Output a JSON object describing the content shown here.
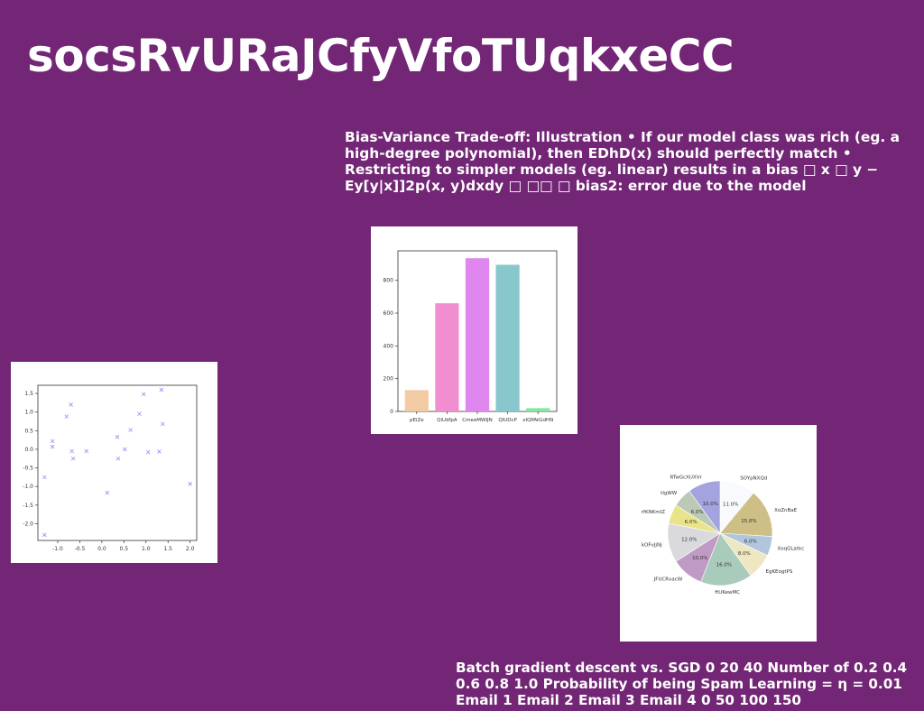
{
  "slide": {
    "title": "socsRvURaJCfyVfoTUqkxeCC",
    "text1": "Bias-Variance Trade-off: Illustration • If our model class was rich (eg. a high-degree polynomial), then EDhD(x) should perfectly match • Restricting to simpler models (eg. linear) results in a bias □ x □ y − Ey[y|x]]2p(x, y)dxdy □ □□ □ bias2: error due to the model",
    "text2": "Batch gradient descent vs. SGD 0 20 40 Number of 0.2 0.4 0.6 0.8 1.0 Probability of being Spam Learning = η = 0.01 Email 1 Email 2 Email 3 Email 4 0 50 100 150"
  },
  "chart_data": [
    {
      "type": "scatter",
      "marker": "x",
      "color": "#8f8ff5",
      "xlim": [
        -1.45,
        2.15
      ],
      "ylim": [
        -2.45,
        1.72
      ],
      "xticks": [
        "-1.0",
        "-0.5",
        "0.0",
        "0.5",
        "1.0",
        "1.5",
        "2.0"
      ],
      "yticks": [
        "1.5",
        "1.0",
        "0.5",
        "0.0",
        "-0.5",
        "-1.0",
        "-1.5",
        "-2.0"
      ],
      "points": [
        [
          -1.3,
          -0.75
        ],
        [
          -1.3,
          -2.3
        ],
        [
          -1.12,
          0.22
        ],
        [
          -1.12,
          0.07
        ],
        [
          -0.8,
          0.88
        ],
        [
          -0.7,
          1.2
        ],
        [
          -0.68,
          -0.05
        ],
        [
          -0.65,
          -0.25
        ],
        [
          -0.35,
          -0.05
        ],
        [
          0.12,
          -1.17
        ],
        [
          0.35,
          0.33
        ],
        [
          0.37,
          -0.25
        ],
        [
          0.52,
          0.0
        ],
        [
          0.65,
          0.52
        ],
        [
          0.85,
          0.95
        ],
        [
          0.95,
          1.48
        ],
        [
          1.05,
          -0.08
        ],
        [
          1.3,
          -0.06
        ],
        [
          1.35,
          1.6
        ],
        [
          1.38,
          0.68
        ],
        [
          2.0,
          -0.93
        ]
      ]
    },
    {
      "type": "bar",
      "categories": [
        "pEiZe",
        "QiUdfpA",
        "CmeeMWIJN",
        "QIUDcP",
        "xIQPAtGdHN"
      ],
      "values": [
        130,
        660,
        935,
        895,
        20
      ],
      "colors": [
        "#f2cba5",
        "#f18ecf",
        "#e087ef",
        "#88c7cc",
        "#86e6a1"
      ],
      "ylim": [
        0,
        980
      ],
      "yticks": [
        0,
        200,
        400,
        600,
        800
      ]
    },
    {
      "type": "pie",
      "start_angle": 90,
      "labels": [
        "SOYpNXQd",
        "XoZnBaE",
        "XoqGLatkc",
        "EgKEogtPS",
        "ftUKewMC",
        "JFUCRvacW",
        "kOFvJjNj",
        "rfKNKmIZ",
        "tlgWW",
        "RTwGcXUXVr"
      ],
      "values": [
        11.0,
        15.0,
        6.0,
        8.0,
        16.0,
        10.0,
        12.0,
        6.0,
        6.0,
        10.0
      ],
      "pct_labels": [
        "11.0%",
        "15.0%",
        "6.0%",
        "8.0%",
        "16.0%",
        "10.0%",
        "12.0%",
        "6.0%",
        "6.0%",
        "10.0%"
      ],
      "colors": [
        "#f8fafe",
        "#cdbf85",
        "#b1c5dd",
        "#efe7c2",
        "#a9cbbb",
        "#bf9ac4",
        "#dadadd",
        "#e9e48a",
        "#bcc9b5",
        "#a4a2df"
      ]
    }
  ]
}
